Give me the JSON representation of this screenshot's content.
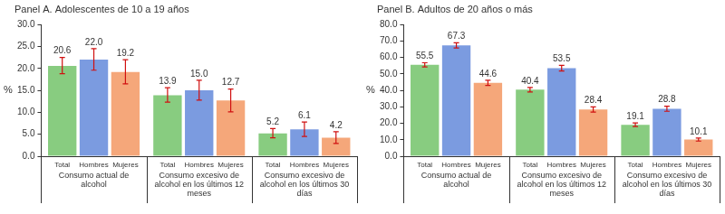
{
  "chart_data": [
    {
      "type": "bar",
      "title": "Panel A. Adolescentes de 10 a 19 años",
      "y_label": "%",
      "categories": [
        "Consumo actual de alcohol",
        "Consumo excesivo de alcohol en los últimos 12 meses",
        "Consumo excesivo de alcohol en los últimos 30 días"
      ],
      "series": [
        {
          "name": "Total",
          "color": "#88cc80",
          "values": [
            20.6,
            13.9,
            5.2
          ],
          "value_labels": [
            "20.6",
            "13.9",
            "5.2"
          ],
          "errors": [
            [
              18.8,
              22.5
            ],
            [
              12.3,
              15.6
            ],
            [
              4.2,
              6.3
            ]
          ]
        },
        {
          "name": "Hombres",
          "color": "#7b9be0",
          "values": [
            22.0,
            15.0,
            6.1
          ],
          "value_labels": [
            "22.0",
            "15.0",
            "6.1"
          ],
          "errors": [
            [
              19.6,
              24.5
            ],
            [
              12.8,
              17.3
            ],
            [
              4.5,
              7.8
            ]
          ]
        },
        {
          "name": "Mujeres",
          "color": "#f5a77a",
          "values": [
            19.2,
            12.7,
            4.2
          ],
          "value_labels": [
            "19.2",
            "12.7",
            "4.2"
          ],
          "errors": [
            [
              16.5,
              22.0
            ],
            [
              10.1,
              15.3
            ],
            [
              2.9,
              5.6
            ]
          ]
        }
      ],
      "ylim": [
        0,
        30
      ],
      "yticks": [
        {
          "value": 0,
          "label": "0.0"
        },
        {
          "value": 5,
          "label": "5.0"
        },
        {
          "value": 10,
          "label": "10.0"
        },
        {
          "value": 15,
          "label": "15.0"
        },
        {
          "value": 20,
          "label": "20.0"
        },
        {
          "value": 25,
          "label": "25.0"
        },
        {
          "value": 30,
          "label": "30.0"
        }
      ],
      "grid": false,
      "data_labels": true
    },
    {
      "type": "bar",
      "title": "Panel B. Adultos de 20 años o más",
      "y_label": "%",
      "categories": [
        "Consumo actual de alcohol",
        "Consumo excesivo de alcohol en los últimos 12 meses",
        "Consumo excesivo de alcohol en los últimos 30 días"
      ],
      "series": [
        {
          "name": "Total",
          "color": "#88cc80",
          "values": [
            55.5,
            40.4,
            19.1
          ],
          "value_labels": [
            "55.5",
            "40.4",
            "19.1"
          ],
          "errors": [
            [
              54.3,
              56.8
            ],
            [
              39.0,
              41.8
            ],
            [
              18.0,
              20.2
            ]
          ]
        },
        {
          "name": "Hombres",
          "color": "#7b9be0",
          "values": [
            67.3,
            53.5,
            28.8
          ],
          "value_labels": [
            "67.3",
            "53.5",
            "28.8"
          ],
          "errors": [
            [
              65.8,
              68.9
            ],
            [
              51.8,
              55.2
            ],
            [
              27.3,
              30.4
            ]
          ]
        },
        {
          "name": "Mujeres",
          "color": "#f5a77a",
          "values": [
            44.6,
            28.4,
            10.1
          ],
          "value_labels": [
            "44.6",
            "28.4",
            "10.1"
          ],
          "errors": [
            [
              43.0,
              46.2
            ],
            [
              26.8,
              30.0
            ],
            [
              9.2,
              11.0
            ]
          ]
        }
      ],
      "ylim": [
        0,
        80
      ],
      "yticks": [
        {
          "value": 0,
          "label": "0.0"
        },
        {
          "value": 10,
          "label": "10.0"
        },
        {
          "value": 20,
          "label": "20.0"
        },
        {
          "value": 30,
          "label": "30.0"
        },
        {
          "value": 40,
          "label": "40.0"
        },
        {
          "value": 50,
          "label": "50.0"
        },
        {
          "value": 60,
          "label": "60.0"
        },
        {
          "value": 70,
          "label": "70.0"
        },
        {
          "value": 80,
          "label": "80.0"
        }
      ],
      "grid": false,
      "data_labels": true
    }
  ]
}
